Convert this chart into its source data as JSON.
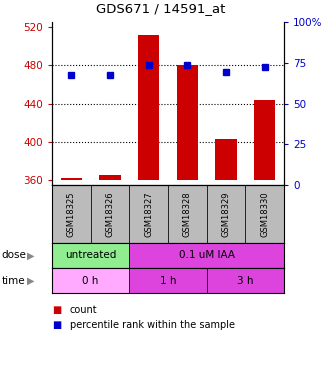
{
  "title": "GDS671 / 14591_at",
  "samples": [
    "GSM18325",
    "GSM18326",
    "GSM18327",
    "GSM18328",
    "GSM18329",
    "GSM18330"
  ],
  "bar_values": [
    362,
    365,
    511,
    480,
    403,
    444
  ],
  "bar_bottom": 360,
  "dot_values": [
    470,
    470,
    480,
    480,
    473,
    478
  ],
  "ylim_left": [
    355,
    525
  ],
  "ylim_right": [
    0,
    100
  ],
  "yticks_left": [
    360,
    400,
    440,
    480,
    520
  ],
  "yticks_right": [
    0,
    25,
    50,
    75,
    100
  ],
  "bar_color": "#cc0000",
  "dot_color": "#0000cc",
  "dose_color_untreated": "#90ee90",
  "dose_color_treated": "#dd44dd",
  "time_color_0h": "#ffaaff",
  "time_color_1h": "#dd44dd",
  "time_color_3h": "#dd44dd",
  "legend_count_color": "#cc0000",
  "legend_dot_color": "#0000cc",
  "left_axis_color": "#cc0000",
  "right_axis_color": "#0000cc",
  "background_sample": "#bbbbbb"
}
